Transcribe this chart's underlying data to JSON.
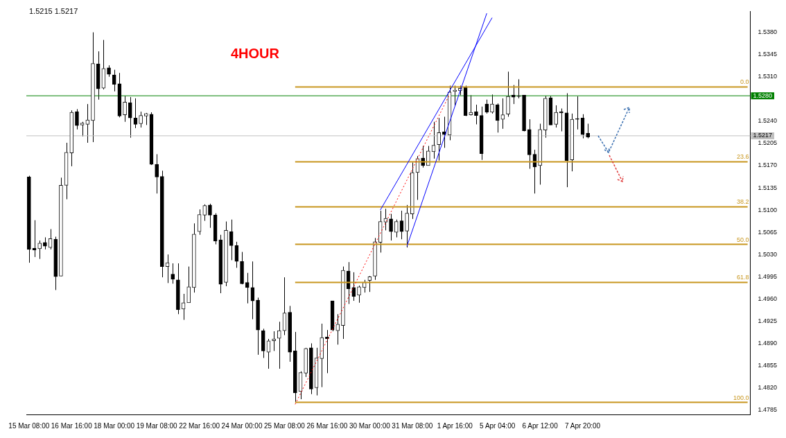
{
  "chart_data": {
    "type": "candlestick",
    "title": "4HOUR",
    "annotations": [
      "1.5215 1.5217"
    ],
    "categories": [
      "15 Mar 08:00",
      null,
      null,
      null,
      null,
      null,
      null,
      null,
      "16 Mar 16:00",
      null,
      null,
      null,
      null,
      null,
      null,
      null,
      "18 Mar 00:00",
      null,
      null,
      null,
      null,
      null,
      null,
      null,
      "19 Mar 08:00",
      null,
      null,
      null,
      null,
      null,
      null,
      null,
      "22 Mar 16:00",
      null,
      null,
      null,
      null,
      null,
      null,
      null,
      "24 Mar 00:00",
      null,
      null,
      null,
      null,
      null,
      null,
      null,
      "25 Mar 08:00",
      null,
      null,
      null,
      null,
      null,
      null,
      null,
      "26 Mar 16:00",
      null,
      null,
      null,
      null,
      null,
      null,
      null,
      "30 Mar 00:00",
      null,
      null,
      null,
      null,
      null,
      null,
      null,
      "31 Mar 08:00",
      null,
      null,
      null,
      null,
      null,
      null,
      null,
      "1 Apr 16:00",
      null,
      null,
      null,
      null,
      null,
      null,
      null,
      "5 Apr 04:00",
      null,
      null,
      null,
      null,
      null,
      null,
      null,
      "6 Apr 12:00",
      null,
      null,
      null,
      null,
      null,
      null,
      null,
      "7 Apr 20:00",
      null,
      null,
      null,
      null,
      null,
      null,
      null,
      null,
      null,
      null,
      null,
      null,
      null,
      null,
      null,
      null,
      null,
      null,
      null,
      null,
      null,
      null,
      null,
      null,
      null,
      null,
      null,
      null,
      null,
      null,
      null
    ],
    "ohlc": [
      [
        1.5152,
        1.5154,
        1.5017,
        1.5038
      ],
      [
        1.504,
        1.5084,
        1.5026,
        1.5037
      ],
      [
        1.5039,
        1.5052,
        1.5023,
        1.5048
      ],
      [
        1.5049,
        1.5057,
        1.5038,
        1.5043
      ],
      [
        1.5041,
        1.507,
        1.5038,
        1.5055
      ],
      [
        1.5054,
        1.5058,
        1.4974,
        1.4995
      ],
      [
        1.4996,
        1.5151,
        1.4996,
        1.5139
      ],
      [
        1.5139,
        1.5206,
        1.5117,
        1.5191
      ],
      [
        1.519,
        1.5257,
        1.5169,
        1.5254
      ],
      [
        1.5255,
        1.5259,
        1.5227,
        1.5233
      ],
      [
        1.5234,
        1.5239,
        1.5216,
        1.5237
      ],
      [
        1.5235,
        1.5267,
        1.5206,
        1.5242
      ],
      [
        1.5241,
        1.538,
        1.5207,
        1.5331
      ],
      [
        1.533,
        1.535,
        1.5274,
        1.5291
      ],
      [
        1.5292,
        1.5368,
        1.529,
        1.5323
      ],
      [
        1.5324,
        1.5328,
        1.531,
        1.5314
      ],
      [
        1.5313,
        1.5321,
        1.5287,
        1.5298
      ],
      [
        1.5299,
        1.5316,
        1.5246,
        1.5248
      ],
      [
        1.525,
        1.528,
        1.5239,
        1.527
      ],
      [
        1.5269,
        1.5278,
        1.5214,
        1.5245
      ],
      [
        1.5245,
        1.5276,
        1.5229,
        1.5235
      ],
      [
        1.5236,
        1.5255,
        1.523,
        1.5249
      ],
      [
        1.5248,
        1.5253,
        1.5234,
        1.5252
      ],
      [
        1.5251,
        1.5254,
        1.5171,
        1.5172
      ],
      [
        1.5172,
        1.5188,
        1.5126,
        1.5152
      ],
      [
        1.5153,
        1.5162,
        1.4994,
        1.5011
      ],
      [
        1.5011,
        1.503,
        1.4985,
        1.5017
      ],
      [
        1.4999,
        1.5016,
        1.4984,
        1.4991
      ],
      [
        1.499,
        1.5016,
        1.4936,
        1.4943
      ],
      [
        1.4944,
        1.4968,
        1.4927,
        1.4954
      ],
      [
        1.4954,
        1.5011,
        1.4954,
        1.4979
      ],
      [
        1.4978,
        1.5079,
        1.497,
        1.5062
      ],
      [
        1.5066,
        1.5101,
        1.5061,
        1.5093
      ],
      [
        1.5092,
        1.5109,
        1.5083,
        1.5107
      ],
      [
        1.5108,
        1.511,
        1.5072,
        1.5092
      ],
      [
        1.5092,
        1.5095,
        1.5046,
        1.5051
      ],
      [
        1.5053,
        1.5061,
        1.4969,
        1.4983
      ],
      [
        1.4986,
        1.5082,
        1.498,
        1.5068
      ],
      [
        1.5066,
        1.5085,
        1.5021,
        1.5044
      ],
      [
        1.5044,
        1.505,
        1.5009,
        1.5019
      ],
      [
        1.5019,
        1.5034,
        1.4983,
        1.4984
      ],
      [
        1.4986,
        1.5001,
        1.4953,
        1.4978
      ],
      [
        1.4978,
        1.5019,
        1.4928,
        1.4957
      ],
      [
        1.4958,
        1.4962,
        1.4872,
        1.4911
      ],
      [
        1.491,
        1.4913,
        1.4867,
        1.4878
      ],
      [
        1.4876,
        1.4897,
        1.485,
        1.4894
      ],
      [
        1.4894,
        1.4909,
        1.4878,
        1.4897
      ],
      [
        1.4898,
        1.4924,
        1.485,
        1.491
      ],
      [
        1.491,
        1.4994,
        1.4903,
        1.4938
      ],
      [
        1.4939,
        1.4949,
        1.4861,
        1.4876
      ],
      [
        1.4878,
        1.4908,
        1.4797,
        1.4812
      ],
      [
        1.4814,
        1.4846,
        1.4802,
        1.4844
      ],
      [
        1.4843,
        1.4883,
        1.4837,
        1.4882
      ],
      [
        1.4883,
        1.489,
        1.481,
        1.4818
      ],
      [
        1.482,
        1.4883,
        1.4808,
        1.4867
      ],
      [
        1.4866,
        1.4921,
        1.4821,
        1.4899
      ],
      [
        1.49,
        1.4911,
        1.4843,
        1.4897
      ],
      [
        1.4957,
        1.4957,
        1.4909,
        1.4911
      ],
      [
        1.491,
        1.4936,
        1.4888,
        1.492
      ],
      [
        1.4918,
        1.5011,
        1.4897,
        1.5005
      ],
      [
        1.5004,
        1.5018,
        1.4952,
        1.4976
      ],
      [
        1.4978,
        1.5002,
        1.4957,
        1.4964
      ],
      [
        1.4966,
        1.4981,
        1.4954,
        1.4979
      ],
      [
        1.4978,
        1.499,
        1.497,
        1.4986
      ],
      [
        1.4989,
        1.4996,
        1.4971,
        1.4995
      ],
      [
        1.4996,
        1.5056,
        1.499,
        1.505
      ],
      [
        1.5049,
        1.5099,
        1.5033,
        1.5082
      ],
      [
        1.5081,
        1.5102,
        1.5068,
        1.5087
      ],
      [
        1.5086,
        1.5094,
        1.5052,
        1.5066
      ],
      [
        1.5065,
        1.5085,
        1.5057,
        1.5082
      ],
      [
        1.5083,
        1.5099,
        1.5054,
        1.5066
      ],
      [
        1.5067,
        1.5108,
        1.5041,
        1.5095
      ],
      [
        1.5094,
        1.5175,
        1.5086,
        1.5159
      ],
      [
        1.5159,
        1.5185,
        1.5116,
        1.5181
      ],
      [
        1.5182,
        1.5201,
        1.5167,
        1.517
      ],
      [
        1.517,
        1.5201,
        1.517,
        1.5193
      ],
      [
        1.5192,
        1.5239,
        1.5181,
        1.5202
      ],
      [
        1.5203,
        1.5245,
        1.5178,
        1.5222
      ],
      [
        1.5223,
        1.5247,
        1.5198,
        1.5219
      ],
      [
        1.5218,
        1.5296,
        1.521,
        1.5286
      ],
      [
        1.5287,
        1.5296,
        1.5264,
        1.5289
      ],
      [
        1.5288,
        1.5296,
        1.5281,
        1.5292
      ],
      [
        1.5293,
        1.5296,
        1.5248,
        1.5249
      ],
      [
        1.525,
        1.5281,
        1.5249,
        1.5254
      ],
      [
        1.5255,
        1.5266,
        1.5235,
        1.5249
      ],
      [
        1.5249,
        1.5263,
        1.5179,
        1.5189
      ],
      [
        1.5267,
        1.5274,
        1.5252,
        1.5254
      ],
      [
        1.5254,
        1.5282,
        1.5252,
        1.5267
      ],
      [
        1.5266,
        1.5268,
        1.5222,
        1.5241
      ],
      [
        1.5243,
        1.5276,
        1.5228,
        1.525
      ],
      [
        1.5251,
        1.5318,
        1.5247,
        1.5279
      ],
      [
        1.5281,
        1.5297,
        1.5267,
        1.5278
      ],
      [
        1.528,
        1.5306,
        1.5276,
        1.5279
      ],
      [
        1.5281,
        1.5281,
        1.5224,
        1.5225
      ],
      [
        1.5227,
        1.5243,
        1.5165,
        1.5187
      ],
      [
        1.5188,
        1.5195,
        1.5126,
        1.5168
      ],
      [
        1.517,
        1.5236,
        1.514,
        1.5227
      ],
      [
        1.5226,
        1.528,
        1.5214,
        1.5276
      ],
      [
        1.5277,
        1.528,
        1.5234,
        1.5234
      ],
      [
        1.5235,
        1.5265,
        1.523,
        1.5254
      ],
      [
        1.5255,
        1.526,
        1.5224,
        1.5253
      ],
      [
        1.5253,
        1.5284,
        1.5136,
        1.5178
      ],
      [
        1.5179,
        1.5252,
        1.5161,
        1.5243
      ],
      [
        1.5244,
        1.5279,
        1.5227,
        1.5243
      ],
      [
        1.5245,
        1.5251,
        1.5213,
        1.5219
      ],
      [
        1.5221,
        1.5236,
        1.5213,
        1.5215
      ],
      null,
      null,
      null,
      null,
      null,
      null,
      null,
      null,
      null,
      null,
      null,
      null,
      null,
      null,
      null,
      null,
      null,
      null,
      null,
      null,
      null,
      null,
      null,
      null,
      null,
      null,
      null,
      null,
      null,
      null
    ],
    "series": [
      {
        "type": "line",
        "color": "#0000ff",
        "line_style": "solid",
        "values": [
          null,
          null,
          null,
          null,
          null,
          null,
          null,
          null,
          null,
          null,
          null,
          null,
          null,
          null,
          null,
          null,
          null,
          null,
          null,
          null,
          null,
          null,
          null,
          null,
          null,
          null,
          null,
          null,
          null,
          null,
          null,
          null,
          null,
          null,
          null,
          null,
          null,
          null,
          null,
          null,
          null,
          null,
          null,
          null,
          null,
          null,
          null,
          null,
          null,
          null,
          null,
          null,
          null,
          null,
          null,
          null,
          null,
          null,
          null,
          null,
          null,
          null,
          null,
          null,
          null,
          null,
          1.51,
          null,
          null,
          null,
          null,
          null,
          null,
          null,
          null,
          null,
          null,
          null,
          null,
          null,
          null,
          null,
          null,
          null,
          null,
          null,
          null,
          1.5403,
          null,
          null,
          null,
          null,
          null,
          null,
          null,
          null,
          null,
          null,
          null,
          null,
          null,
          null,
          null,
          null,
          null,
          null,
          null,
          null,
          null,
          null,
          null,
          null,
          null,
          null,
          null,
          null,
          null,
          null,
          null,
          null,
          null,
          null,
          null,
          null,
          null,
          null,
          null,
          null,
          null,
          null,
          null,
          null,
          null,
          null,
          null,
          null
        ]
      },
      {
        "type": "line",
        "color": "#0000ff",
        "line_style": "solid",
        "values": [
          null,
          null,
          null,
          null,
          null,
          null,
          null,
          null,
          null,
          null,
          null,
          null,
          null,
          null,
          null,
          null,
          null,
          null,
          null,
          null,
          null,
          null,
          null,
          null,
          null,
          null,
          null,
          null,
          null,
          null,
          null,
          null,
          null,
          null,
          null,
          null,
          null,
          null,
          null,
          null,
          null,
          null,
          null,
          null,
          null,
          null,
          null,
          null,
          null,
          null,
          null,
          null,
          null,
          null,
          null,
          null,
          null,
          null,
          null,
          null,
          null,
          null,
          null,
          null,
          null,
          null,
          null,
          null,
          null,
          null,
          null,
          1.5043,
          null,
          null,
          null,
          null,
          null,
          null,
          null,
          null,
          null,
          null,
          null,
          null,
          null,
          null,
          1.541,
          null,
          null,
          null,
          null,
          null,
          null,
          null,
          null,
          null,
          null,
          null,
          null,
          null,
          null,
          null,
          null,
          null,
          null,
          null,
          null,
          null,
          null,
          null,
          null,
          null,
          null,
          null,
          null,
          null,
          null,
          null,
          null,
          null,
          null,
          null,
          null,
          null,
          null,
          null,
          null,
          null,
          null,
          null,
          null,
          null,
          null,
          null,
          null,
          null
        ]
      },
      {
        "type": "line",
        "color": "#ff0000",
        "line_style": "dotted",
        "values": [
          null,
          null,
          null,
          null,
          null,
          null,
          null,
          null,
          null,
          null,
          null,
          null,
          null,
          null,
          null,
          null,
          null,
          null,
          null,
          null,
          null,
          null,
          null,
          null,
          null,
          null,
          null,
          null,
          null,
          null,
          null,
          null,
          null,
          null,
          null,
          null,
          null,
          null,
          null,
          null,
          null,
          null,
          null,
          null,
          null,
          null,
          null,
          null,
          null,
          null,
          1.4794,
          null,
          null,
          null,
          null,
          null,
          null,
          null,
          null,
          null,
          null,
          null,
          null,
          null,
          null,
          null,
          null,
          null,
          null,
          null,
          null,
          null,
          null,
          null,
          null,
          null,
          null,
          null,
          null,
          1.5282,
          null,
          null,
          null,
          null,
          null,
          null,
          null,
          null,
          null,
          null,
          null,
          null,
          null,
          null,
          null,
          null,
          null,
          null,
          null,
          null,
          null,
          null,
          null,
          null,
          null,
          null,
          null,
          null,
          null,
          null,
          null,
          null,
          null,
          null,
          null,
          null,
          null,
          null,
          null,
          null,
          null,
          null,
          null,
          null,
          null,
          null,
          null,
          null,
          null,
          null,
          null,
          null,
          null,
          null,
          null,
          null
        ]
      },
      {
        "type": "line",
        "name": "0.0",
        "color": "#c8961e",
        "line_style": "solid",
        "values": [
          null,
          null,
          null,
          null,
          null,
          null,
          null,
          null,
          null,
          null,
          null,
          null,
          null,
          null,
          null,
          null,
          null,
          null,
          null,
          null,
          null,
          null,
          null,
          null,
          null,
          null,
          null,
          null,
          null,
          null,
          null,
          null,
          null,
          null,
          null,
          null,
          null,
          null,
          null,
          null,
          null,
          null,
          null,
          null,
          null,
          null,
          null,
          null,
          null,
          null,
          1.5294,
          null,
          null,
          null,
          null,
          null,
          null,
          null,
          null,
          null,
          null,
          null,
          null,
          null,
          null,
          null,
          null,
          null,
          null,
          null,
          null,
          null,
          null,
          null,
          null,
          null,
          null,
          null,
          null,
          null,
          null,
          null,
          null,
          null,
          null,
          null,
          null,
          null,
          null,
          null,
          null,
          null,
          null,
          null,
          null,
          null,
          null,
          null,
          null,
          null,
          null,
          null,
          null,
          null,
          null,
          null,
          null,
          null,
          null,
          null,
          null,
          null,
          null,
          null,
          null,
          null,
          null,
          null,
          null,
          null,
          null,
          null,
          null,
          null,
          null,
          null,
          null,
          null,
          null,
          null,
          null,
          null,
          null,
          null,
          null,
          1.5294
        ]
      },
      {
        "type": "line",
        "name": "23.6",
        "color": "#c8961e",
        "line_style": "solid",
        "values": [
          null,
          null,
          null,
          null,
          null,
          null,
          null,
          null,
          null,
          null,
          null,
          null,
          null,
          null,
          null,
          null,
          null,
          null,
          null,
          null,
          null,
          null,
          null,
          null,
          null,
          null,
          null,
          null,
          null,
          null,
          null,
          null,
          null,
          null,
          null,
          null,
          null,
          null,
          null,
          null,
          null,
          null,
          null,
          null,
          null,
          null,
          null,
          null,
          null,
          null,
          1.5176,
          null,
          null,
          null,
          null,
          null,
          null,
          null,
          null,
          null,
          null,
          null,
          null,
          null,
          null,
          null,
          null,
          null,
          null,
          null,
          null,
          null,
          null,
          null,
          null,
          null,
          null,
          null,
          null,
          null,
          null,
          null,
          null,
          null,
          null,
          null,
          null,
          null,
          null,
          null,
          null,
          null,
          null,
          null,
          null,
          null,
          null,
          null,
          null,
          null,
          null,
          null,
          null,
          null,
          null,
          null,
          null,
          null,
          null,
          null,
          null,
          null,
          null,
          null,
          null,
          null,
          null,
          null,
          null,
          null,
          null,
          null,
          null,
          null,
          null,
          null,
          null,
          null,
          null,
          null,
          null,
          null,
          null,
          null,
          null,
          1.5176
        ]
      },
      {
        "type": "line",
        "name": "38.2",
        "color": "#c8961e",
        "line_style": "solid",
        "values": [
          null,
          null,
          null,
          null,
          null,
          null,
          null,
          null,
          null,
          null,
          null,
          null,
          null,
          null,
          null,
          null,
          null,
          null,
          null,
          null,
          null,
          null,
          null,
          null,
          null,
          null,
          null,
          null,
          null,
          null,
          null,
          null,
          null,
          null,
          null,
          null,
          null,
          null,
          null,
          null,
          null,
          null,
          null,
          null,
          null,
          null,
          null,
          null,
          null,
          null,
          1.5105,
          null,
          null,
          null,
          null,
          null,
          null,
          null,
          null,
          null,
          null,
          null,
          null,
          null,
          null,
          null,
          null,
          null,
          null,
          null,
          null,
          null,
          null,
          null,
          null,
          null,
          null,
          null,
          null,
          null,
          null,
          null,
          null,
          null,
          null,
          null,
          null,
          null,
          null,
          null,
          null,
          null,
          null,
          null,
          null,
          null,
          null,
          null,
          null,
          null,
          null,
          null,
          null,
          null,
          null,
          null,
          null,
          null,
          null,
          null,
          null,
          null,
          null,
          null,
          null,
          null,
          null,
          null,
          null,
          null,
          null,
          null,
          null,
          null,
          null,
          null,
          null,
          null,
          null,
          null,
          null,
          null,
          null,
          null,
          null,
          1.5105
        ]
      },
      {
        "type": "line",
        "name": "50.0",
        "color": "#c8961e",
        "line_style": "solid",
        "values": [
          null,
          null,
          null,
          null,
          null,
          null,
          null,
          null,
          null,
          null,
          null,
          null,
          null,
          null,
          null,
          null,
          null,
          null,
          null,
          null,
          null,
          null,
          null,
          null,
          null,
          null,
          null,
          null,
          null,
          null,
          null,
          null,
          null,
          null,
          null,
          null,
          null,
          null,
          null,
          null,
          null,
          null,
          null,
          null,
          null,
          null,
          null,
          null,
          null,
          null,
          1.5046,
          null,
          null,
          null,
          null,
          null,
          null,
          null,
          null,
          null,
          null,
          null,
          null,
          null,
          null,
          null,
          null,
          null,
          null,
          null,
          null,
          null,
          null,
          null,
          null,
          null,
          null,
          null,
          null,
          null,
          null,
          null,
          null,
          null,
          null,
          null,
          null,
          null,
          null,
          null,
          null,
          null,
          null,
          null,
          null,
          null,
          null,
          null,
          null,
          null,
          null,
          null,
          null,
          null,
          null,
          null,
          null,
          null,
          null,
          null,
          null,
          null,
          null,
          null,
          null,
          null,
          null,
          null,
          null,
          null,
          null,
          null,
          null,
          null,
          null,
          null,
          null,
          null,
          null,
          null,
          null,
          null,
          null,
          null,
          null,
          1.5046
        ]
      },
      {
        "type": "line",
        "name": "61.8",
        "color": "#c8961e",
        "line_style": "solid",
        "values": [
          null,
          null,
          null,
          null,
          null,
          null,
          null,
          null,
          null,
          null,
          null,
          null,
          null,
          null,
          null,
          null,
          null,
          null,
          null,
          null,
          null,
          null,
          null,
          null,
          null,
          null,
          null,
          null,
          null,
          null,
          null,
          null,
          null,
          null,
          null,
          null,
          null,
          null,
          null,
          null,
          null,
          null,
          null,
          null,
          null,
          null,
          null,
          null,
          null,
          null,
          1.4986,
          null,
          null,
          null,
          null,
          null,
          null,
          null,
          null,
          null,
          null,
          null,
          null,
          null,
          null,
          null,
          null,
          null,
          null,
          null,
          null,
          null,
          null,
          null,
          null,
          null,
          null,
          null,
          null,
          null,
          null,
          null,
          null,
          null,
          null,
          null,
          null,
          null,
          null,
          null,
          null,
          null,
          null,
          null,
          null,
          null,
          null,
          null,
          null,
          null,
          null,
          null,
          null,
          null,
          null,
          null,
          null,
          null,
          null,
          null,
          null,
          null,
          null,
          null,
          null,
          null,
          null,
          null,
          null,
          null,
          null,
          null,
          null,
          null,
          null,
          null,
          null,
          null,
          null,
          null,
          null,
          null,
          null,
          null,
          null,
          1.4986
        ]
      },
      {
        "type": "line",
        "name": "100.0",
        "color": "#c8961e",
        "line_style": "solid",
        "values": [
          null,
          null,
          null,
          null,
          null,
          null,
          null,
          null,
          null,
          null,
          null,
          null,
          null,
          null,
          null,
          null,
          null,
          null,
          null,
          null,
          null,
          null,
          null,
          null,
          null,
          null,
          null,
          null,
          null,
          null,
          null,
          null,
          null,
          null,
          null,
          null,
          null,
          null,
          null,
          null,
          null,
          null,
          null,
          null,
          null,
          null,
          null,
          null,
          null,
          null,
          1.4797,
          null,
          null,
          null,
          null,
          null,
          null,
          null,
          null,
          null,
          null,
          null,
          null,
          null,
          null,
          null,
          null,
          null,
          null,
          null,
          null,
          null,
          null,
          null,
          null,
          null,
          null,
          null,
          null,
          null,
          null,
          null,
          null,
          null,
          null,
          null,
          null,
          null,
          null,
          null,
          null,
          null,
          null,
          null,
          null,
          null,
          null,
          null,
          null,
          null,
          null,
          null,
          null,
          null,
          null,
          null,
          null,
          null,
          null,
          null,
          null,
          null,
          null,
          null,
          null,
          null,
          null,
          null,
          null,
          null,
          null,
          null,
          null,
          null,
          null,
          null,
          null,
          null,
          null,
          null,
          null,
          null,
          null,
          null,
          null,
          1.4797
        ]
      }
    ],
    "ylim": [
      1.4778,
      1.5413
    ],
    "yticks": [
      {
        "value": 1.538,
        "label": "1.5380"
      },
      1.5345,
      {
        "value": 1.531,
        "label": "1.5310"
      },
      {
        "value": 1.524,
        "label": "1.5240"
      },
      1.5205,
      {
        "value": 1.517,
        "label": "1.5170"
      },
      1.5135,
      {
        "value": 1.51,
        "label": "1.5100"
      },
      1.5065,
      {
        "value": 1.503,
        "label": "1.5030"
      },
      1.4995,
      {
        "value": 1.496,
        "label": "1.4960"
      },
      1.4925,
      {
        "value": 1.489,
        "label": "1.4890"
      },
      1.4855,
      {
        "value": 1.482,
        "label": "1.4820"
      },
      1.4785
    ],
    "ref_lines": [
      {
        "axis": "y",
        "value": 1.528,
        "label": "1.5280",
        "color": "#008000"
      },
      {
        "axis": "y",
        "value": 1.5217,
        "label": "1.5217",
        "color": "#c0c0c0"
      }
    ]
  }
}
